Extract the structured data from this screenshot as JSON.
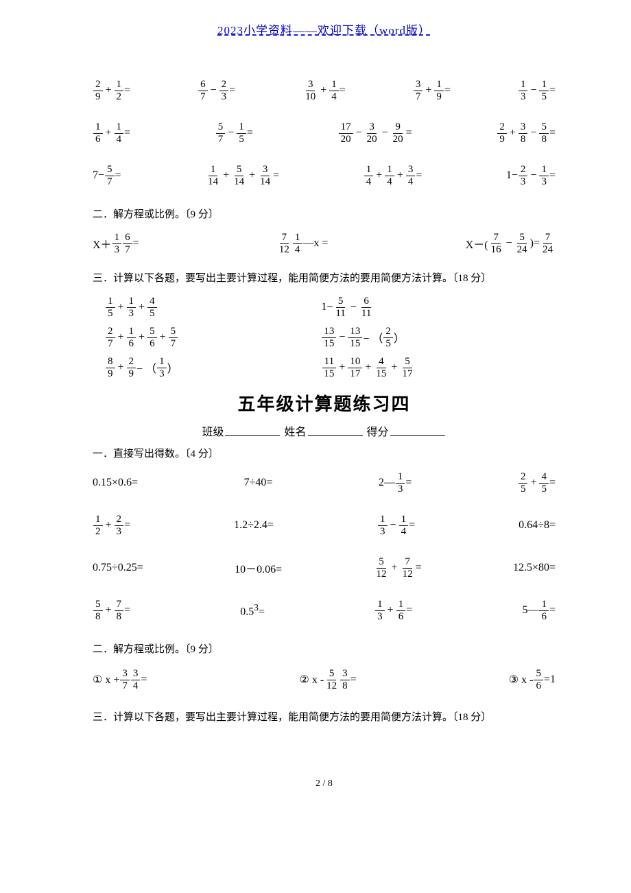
{
  "header_link": "2023小学资料——欢迎下载（word版）",
  "footer": "2 / 8",
  "section_A": {
    "row1": [
      {
        "a": {
          "n": "2",
          "d": "9"
        },
        "op": "+",
        "b": {
          "n": "1",
          "d": "2"
        },
        "suf": "="
      },
      {
        "a": {
          "n": "6",
          "d": "7"
        },
        "op": "−",
        "b": {
          "n": "2",
          "d": "3"
        },
        "suf": "="
      },
      {
        "a": {
          "n": "3",
          "d": "10"
        },
        "op": "+",
        "b": {
          "n": "1",
          "d": "4"
        },
        "suf": "="
      },
      {
        "a": {
          "n": "3",
          "d": "7"
        },
        "op": "+",
        "b": {
          "n": "1",
          "d": "9"
        },
        "suf": "="
      },
      {
        "a": {
          "n": "1",
          "d": "3"
        },
        "op": "−",
        "b": {
          "n": "1",
          "d": "5"
        },
        "suf": "="
      }
    ],
    "row2": [
      {
        "a": {
          "n": "1",
          "d": "6"
        },
        "op": "+",
        "b": {
          "n": "1",
          "d": "4"
        },
        "suf": "="
      },
      {
        "a": {
          "n": "5",
          "d": "7"
        },
        "op": "−",
        "b": {
          "n": "1",
          "d": "5"
        },
        "suf": "="
      },
      {
        "a": {
          "n": "17",
          "d": "20"
        },
        "op": "−",
        "b": {
          "n": "3",
          "d": "20"
        },
        "op2": "−",
        "c": {
          "n": "9",
          "d": "20"
        },
        "suf": "="
      },
      {
        "a": {
          "n": "2",
          "d": "9"
        },
        "op": "+",
        "b": {
          "n": "3",
          "d": "8"
        },
        "op2": "−",
        "c": {
          "n": "5",
          "d": "8"
        },
        "suf": "="
      }
    ],
    "row3": [
      {
        "pre": "7−",
        "a": {
          "n": "5",
          "d": "7"
        },
        "suf": "="
      },
      {
        "a": {
          "n": "1",
          "d": "14"
        },
        "op": "+",
        "b": {
          "n": "5",
          "d": "14"
        },
        "op2": "+",
        "c": {
          "n": "3",
          "d": "14"
        },
        "suf": "="
      },
      {
        "a": {
          "n": "1",
          "d": "4"
        },
        "op": "+",
        "b": {
          "n": "1",
          "d": "4"
        },
        "op2": "+",
        "c": {
          "n": "3",
          "d": "4"
        },
        "suf": "="
      },
      {
        "pre": "1−",
        "a": {
          "n": "2",
          "d": "3"
        },
        "op": "−",
        "b": {
          "n": "1",
          "d": "3"
        },
        "suf": "="
      }
    ]
  },
  "heading2": "二．解方程或比例。〔9 分〕",
  "section_B": {
    "row1": [
      {
        "pre": "X＋",
        "a": {
          "n": "1",
          "d": "3"
        },
        "mid": "=",
        "b": {
          "n": "6",
          "d": "7"
        }
      },
      {
        "a": {
          "n": "7",
          "d": "12"
        },
        "mid": "—x  = ",
        "b": {
          "n": "1",
          "d": "4"
        }
      },
      {
        "pre": "X－(",
        "a": {
          "n": "7",
          "d": "16"
        },
        "op": "−",
        "b": {
          "n": "5",
          "d": "24"
        },
        "mid": ")=",
        "c": {
          "n": "7",
          "d": "24"
        }
      }
    ]
  },
  "heading3": "三．计算以下各题，要写出主要计算过程，能用简便方法的要用简便方法计算。〔18 分〕",
  "section_C": {
    "left": [
      {
        "a": {
          "n": "1",
          "d": "5"
        },
        "op": "+",
        "b": {
          "n": "1",
          "d": "3"
        },
        "op2": "+",
        "c": {
          "n": "4",
          "d": "5"
        }
      },
      {
        "a": {
          "n": "2",
          "d": "7"
        },
        "op": "+",
        "b": {
          "n": "1",
          "d": "6"
        },
        "op2": "+",
        "c": {
          "n": "5",
          "d": "6"
        },
        "op3": "+",
        "d": {
          "n": "5",
          "d": "7"
        }
      },
      {
        "a": {
          "n": "8",
          "d": "9"
        },
        "mid": "− （",
        "b": {
          "n": "2",
          "d": "9"
        },
        "op": "+",
        "c": {
          "n": "1",
          "d": "3"
        },
        "suf": "）"
      }
    ],
    "right": [
      {
        "pre": "1−",
        "a": {
          "n": "5",
          "d": "11"
        },
        "op": "−",
        "b": {
          "n": "6",
          "d": "11"
        }
      },
      {
        "a": {
          "n": "13",
          "d": "15"
        },
        "mid": "− （",
        "b": {
          "n": "13",
          "d": "15"
        },
        "op": "−",
        "c": {
          "n": "2",
          "d": "5"
        },
        "suf": "）"
      },
      {
        "a": {
          "n": "11",
          "d": "15"
        },
        "op": "+",
        "b": {
          "n": "10",
          "d": "17"
        },
        "op2": "+",
        "c": {
          "n": "4",
          "d": "15"
        },
        "op3": "+",
        "d": {
          "n": "5",
          "d": "17"
        }
      }
    ]
  },
  "subtitle": "五年级计算题练习四",
  "formline": {
    "class": "班级",
    "name": "姓名",
    "score": "得分"
  },
  "heading1b": "一．直接写出得数。〔4 分〕",
  "section_D": {
    "row1": [
      {
        "text": "0.15×0.6="
      },
      {
        "text": "7÷40="
      },
      {
        "pre": "2—",
        "a": {
          "n": "1",
          "d": "3"
        },
        "suf": "="
      },
      {
        "a": {
          "n": "2",
          "d": "5"
        },
        "op": "+",
        "b": {
          "n": "4",
          "d": "5"
        },
        "suf": "="
      }
    ],
    "row2": [
      {
        "a": {
          "n": "1",
          "d": "2"
        },
        "op": "+",
        "b": {
          "n": "2",
          "d": "3"
        },
        "suf": "="
      },
      {
        "text": "1.2÷2.4="
      },
      {
        "a": {
          "n": "1",
          "d": "3"
        },
        "op": "−",
        "b": {
          "n": "1",
          "d": "4"
        },
        "suf": "="
      },
      {
        "text": "0.64÷8="
      }
    ],
    "row3": [
      {
        "text": "0.75÷0.25="
      },
      {
        "text": "10－0.06="
      },
      {
        "a": {
          "n": "5",
          "d": "12"
        },
        "op": "+",
        "b": {
          "n": "7",
          "d": "12"
        },
        "suf": "="
      },
      {
        "text": "12.5×80="
      }
    ],
    "row4": [
      {
        "a": {
          "n": "5",
          "d": "8"
        },
        "op": "+",
        "b": {
          "n": "7",
          "d": "8"
        },
        "suf": "="
      },
      {
        "html": "0.5<sup>3</sup>="
      },
      {
        "a": {
          "n": "1",
          "d": "3"
        },
        "op": "+",
        "b": {
          "n": "1",
          "d": "6"
        },
        "suf": "="
      },
      {
        "pre": "5— ",
        "a": {
          "n": "1",
          "d": "6"
        },
        "suf": "="
      }
    ]
  },
  "heading2b": "二．解方程或比例。〔9 分〕",
  "section_E": {
    "row1": [
      {
        "pre": "① x + ",
        "a": {
          "n": "3",
          "d": "7"
        },
        "mid": "= ",
        "b": {
          "n": "3",
          "d": "4"
        }
      },
      {
        "pre": "② x - ",
        "a": {
          "n": "5",
          "d": "12"
        },
        "mid": "= ",
        "b": {
          "n": "3",
          "d": "8"
        }
      },
      {
        "pre": "③ x -",
        "a": {
          "n": "5",
          "d": "6"
        },
        "mid": "=1"
      }
    ]
  },
  "heading3b": "三．计算以下各题，要写出主要计算过程，能用简便方法的要用简便方法计算。〔18 分〕"
}
